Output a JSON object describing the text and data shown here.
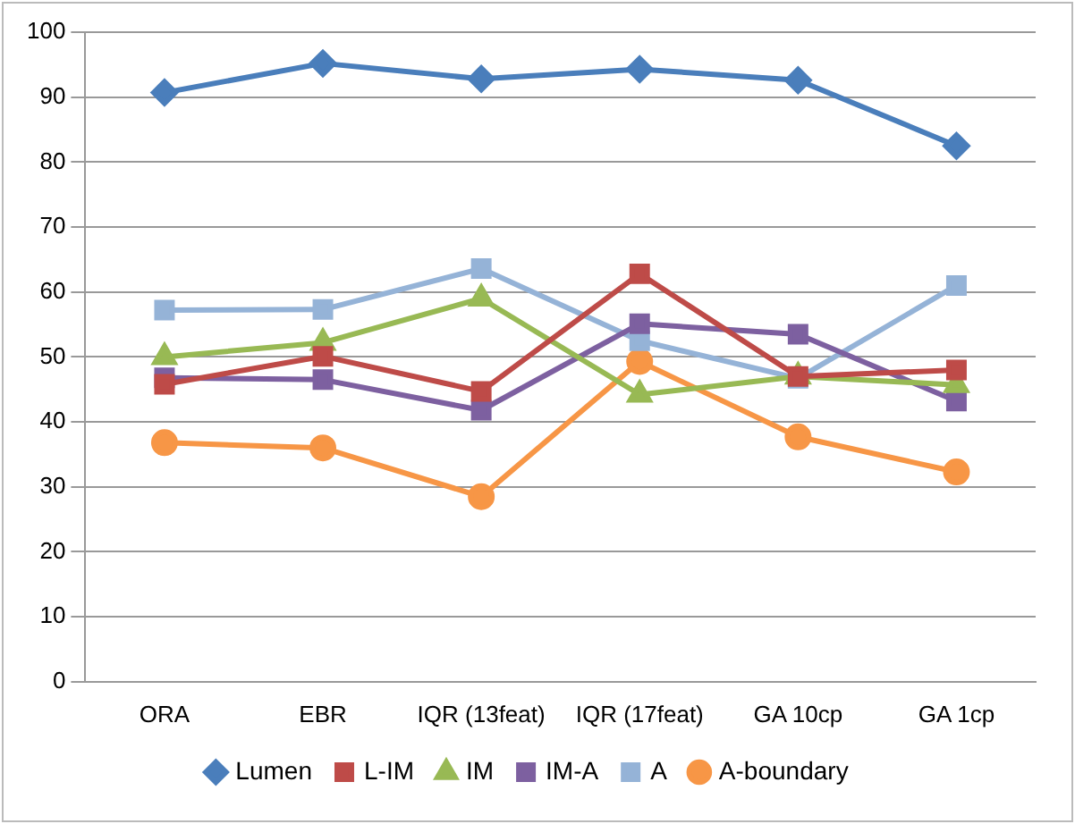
{
  "chart_data": {
    "type": "line",
    "categories": [
      "ORA",
      "EBR",
      "IQR (13feat)",
      "IQR (17feat)",
      "GA 10cp",
      "GA 1cp"
    ],
    "series": [
      {
        "name": "Lumen",
        "color": "#4a7ebb",
        "marker": "diamond",
        "values": [
          90.7,
          95.2,
          92.8,
          94.3,
          92.6,
          82.5
        ]
      },
      {
        "name": "L-IM",
        "color": "#be4b48",
        "marker": "square",
        "values": [
          45.8,
          50.1,
          44.7,
          62.8,
          47,
          48
        ]
      },
      {
        "name": "IM",
        "color": "#98b954",
        "marker": "triangle",
        "values": [
          50,
          52.2,
          59,
          44.2,
          47,
          45.7
        ]
      },
      {
        "name": "IM-A",
        "color": "#7d60a0",
        "marker": "square",
        "values": [
          46.8,
          46.5,
          41.8,
          55.1,
          53.5,
          43.2
        ]
      },
      {
        "name": "A",
        "color": "#95b3d7",
        "marker": "square",
        "values": [
          57.2,
          57.3,
          63.6,
          52.5,
          46.7,
          61
        ]
      },
      {
        "name": "A-boundary",
        "color": "#f79646",
        "marker": "circle",
        "values": [
          36.8,
          36,
          28.5,
          49.3,
          37.7,
          32.3
        ]
      }
    ],
    "ylim": [
      0,
      100
    ],
    "yticks": [
      0,
      10,
      20,
      30,
      40,
      50,
      60,
      70,
      80,
      90,
      100
    ],
    "grid": "y",
    "legend": "bottom"
  }
}
